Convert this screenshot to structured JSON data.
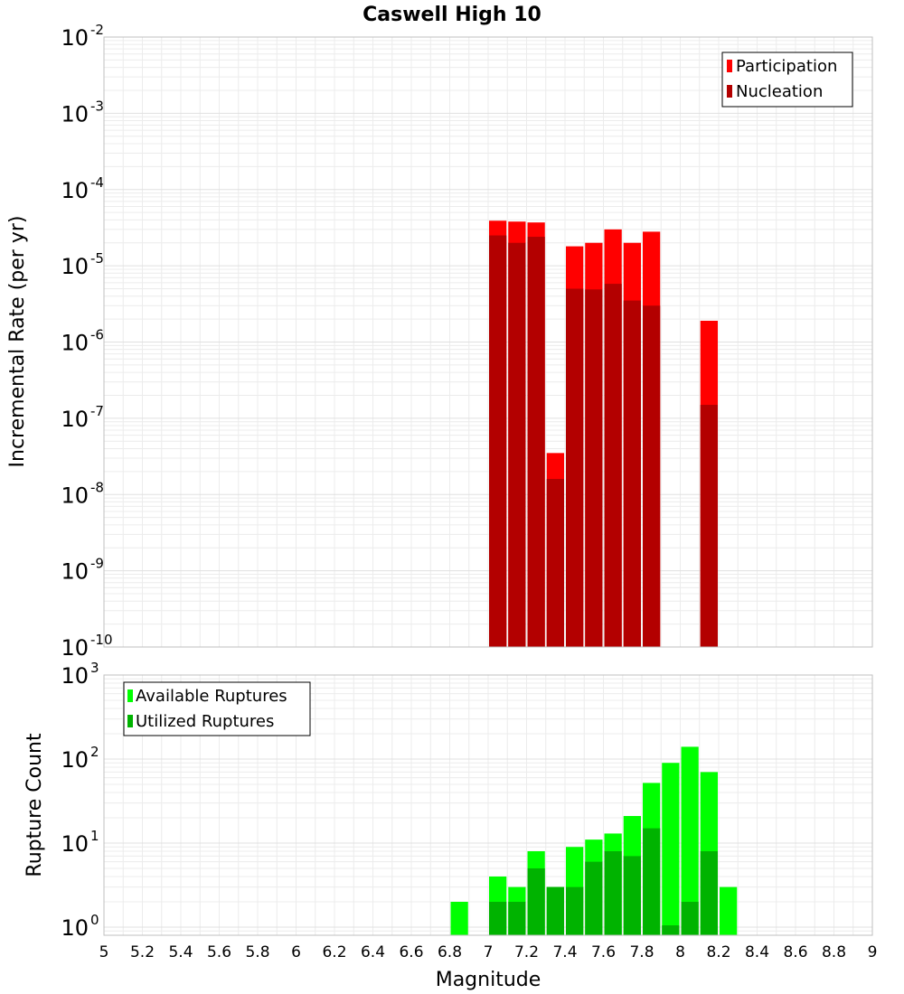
{
  "chart_data": [
    {
      "type": "bar",
      "title": "Caswell High 10",
      "ylabel": "Incremental Rate (per yr)",
      "xlabel": "",
      "yscale": "log",
      "ylim": [
        1e-10,
        0.01
      ],
      "xlim": [
        5,
        9
      ],
      "y_tick_bases": [
        "10",
        "10",
        "10",
        "10",
        "10",
        "10",
        "10",
        "10",
        "10"
      ],
      "y_tick_exponents": [
        "-10",
        "-9",
        "-8",
        "-7",
        "-6",
        "-5",
        "-4",
        "-3",
        "-2"
      ],
      "legend_position": "top-right",
      "grid": true,
      "series": [
        {
          "name": "Participation",
          "color": "#ff0000",
          "x": [
            7.05,
            7.15,
            7.25,
            7.35,
            7.45,
            7.55,
            7.65,
            7.75,
            7.85,
            8.15
          ],
          "values": [
            3.9e-05,
            3.8e-05,
            3.7e-05,
            3.5e-08,
            1.8e-05,
            2e-05,
            3e-05,
            2e-05,
            2.8e-05,
            1.9e-06
          ]
        },
        {
          "name": "Nucleation",
          "color": "#b30000",
          "x": [
            7.05,
            7.15,
            7.25,
            7.35,
            7.45,
            7.55,
            7.65,
            7.75,
            7.85,
            8.15
          ],
          "values": [
            2.5e-05,
            2e-05,
            2.4e-05,
            1.6e-08,
            5e-06,
            4.9e-06,
            5.8e-06,
            3.5e-06,
            3e-06,
            1.5e-07
          ]
        }
      ]
    },
    {
      "type": "bar",
      "title": "",
      "ylabel": "Rupture Count",
      "xlabel": "Magnitude",
      "yscale": "log",
      "ylim": [
        0.8,
        1000
      ],
      "xlim": [
        5,
        9
      ],
      "y_tick_bases": [
        "10",
        "10",
        "10",
        "10"
      ],
      "y_tick_exponents": [
        "0",
        "1",
        "2",
        "3"
      ],
      "x_ticks": [
        "5",
        "5.2",
        "5.4",
        "5.6",
        "5.8",
        "6",
        "6.2",
        "6.4",
        "6.6",
        "6.8",
        "7",
        "7.2",
        "7.4",
        "7.6",
        "7.8",
        "8",
        "8.2",
        "8.4",
        "8.6",
        "8.8",
        "9"
      ],
      "legend_position": "top-left",
      "grid": true,
      "series": [
        {
          "name": "Available Ruptures",
          "color": "#00ff00",
          "x": [
            6.85,
            7.05,
            7.15,
            7.25,
            7.35,
            7.45,
            7.55,
            7.65,
            7.75,
            7.85,
            7.95,
            8.05,
            8.15,
            8.25
          ],
          "values": [
            2,
            4,
            3,
            8,
            3,
            9,
            11,
            13,
            21,
            52,
            90,
            140,
            70,
            3
          ]
        },
        {
          "name": "Utilized Ruptures",
          "color": "#00b300",
          "x": [
            7.05,
            7.15,
            7.25,
            7.35,
            7.45,
            7.55,
            7.65,
            7.75,
            7.85,
            7.95,
            8.05,
            8.15
          ],
          "values": [
            2,
            2,
            5,
            3,
            3,
            6,
            8,
            7,
            15,
            1.05,
            2,
            8
          ]
        }
      ]
    }
  ]
}
